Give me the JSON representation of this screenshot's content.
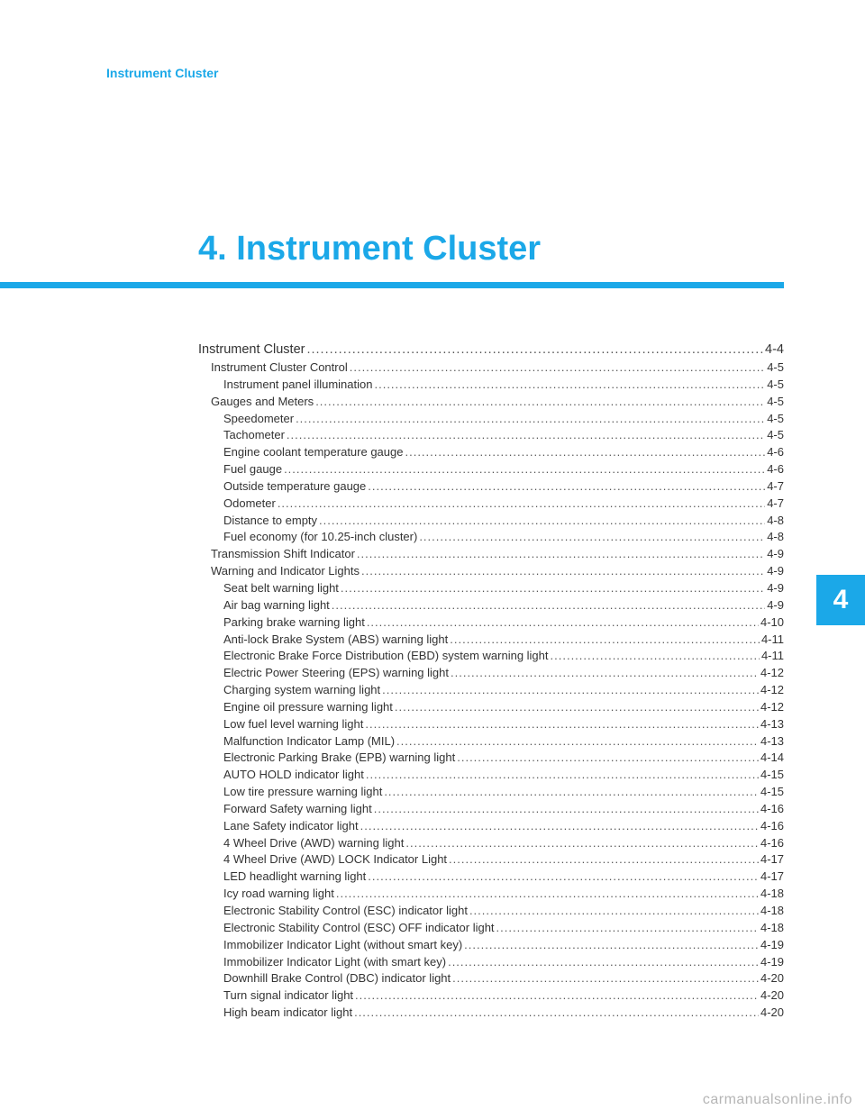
{
  "header": {
    "label": "Instrument Cluster"
  },
  "chapter": {
    "title": "4. Instrument Cluster",
    "tab_number": "4"
  },
  "colors": {
    "accent": "#1ba8e8",
    "text": "#333333",
    "background": "#ffffff"
  },
  "toc": [
    {
      "level": 0,
      "label": "Instrument Cluster",
      "page": "4-4"
    },
    {
      "level": 1,
      "label": "Instrument Cluster Control",
      "page": "4-5"
    },
    {
      "level": 2,
      "label": "Instrument panel illumination",
      "page": "4-5"
    },
    {
      "level": 1,
      "label": "Gauges and Meters",
      "page": "4-5"
    },
    {
      "level": 2,
      "label": "Speedometer",
      "page": "4-5"
    },
    {
      "level": 2,
      "label": "Tachometer",
      "page": "4-5"
    },
    {
      "level": 2,
      "label": "Engine coolant temperature gauge",
      "page": "4-6"
    },
    {
      "level": 2,
      "label": "Fuel gauge",
      "page": "4-6"
    },
    {
      "level": 2,
      "label": "Outside temperature gauge",
      "page": "4-7"
    },
    {
      "level": 2,
      "label": "Odometer",
      "page": "4-7"
    },
    {
      "level": 2,
      "label": "Distance to empty",
      "page": "4-8"
    },
    {
      "level": 2,
      "label": "Fuel economy (for 10.25-inch cluster) ",
      "page": "4-8"
    },
    {
      "level": 1,
      "label": "Transmission Shift Indicator",
      "page": "4-9"
    },
    {
      "level": 1,
      "label": "Warning and Indicator Lights",
      "page": "4-9"
    },
    {
      "level": 2,
      "label": "Seat belt warning light",
      "page": "4-9"
    },
    {
      "level": 2,
      "label": "Air bag warning light",
      "page": "4-9"
    },
    {
      "level": 2,
      "label": "Parking brake warning light",
      "page": "4-10"
    },
    {
      "level": 2,
      "label": "Anti-lock Brake System (ABS) warning light",
      "page": "4-11"
    },
    {
      "level": 2,
      "label": "Electronic Brake Force Distribution (EBD) system warning light",
      "page": "4-11"
    },
    {
      "level": 2,
      "label": "Electric Power Steering (EPS) warning light",
      "page": "4-12"
    },
    {
      "level": 2,
      "label": "Charging system warning light",
      "page": "4-12"
    },
    {
      "level": 2,
      "label": "Engine oil pressure warning light",
      "page": "4-12"
    },
    {
      "level": 2,
      "label": "Low fuel level warning light",
      "page": "4-13"
    },
    {
      "level": 2,
      "label": "Malfunction Indicator Lamp (MIL)",
      "page": "4-13"
    },
    {
      "level": 2,
      "label": "Electronic Parking Brake (EPB) warning light ",
      "page": "4-14"
    },
    {
      "level": 2,
      "label": "AUTO HOLD indicator light",
      "page": "4-15"
    },
    {
      "level": 2,
      "label": "Low tire pressure warning light",
      "page": "4-15"
    },
    {
      "level": 2,
      "label": "Forward Safety warning light ",
      "page": "4-16"
    },
    {
      "level": 2,
      "label": "Lane Safety indicator light ",
      "page": "4-16"
    },
    {
      "level": 2,
      "label": "4 Wheel Drive (AWD) warning light",
      "page": "4-16"
    },
    {
      "level": 2,
      "label": "4 Wheel Drive (AWD) LOCK Indicator Light",
      "page": "4-17"
    },
    {
      "level": 2,
      "label": "LED headlight warning light",
      "page": "4-17"
    },
    {
      "level": 2,
      "label": "Icy road warning light ",
      "page": "4-18"
    },
    {
      "level": 2,
      "label": "Electronic Stability Control (ESC) indicator light",
      "page": "4-18"
    },
    {
      "level": 2,
      "label": "Electronic Stability Control (ESC) OFF indicator light",
      "page": "4-18"
    },
    {
      "level": 2,
      "label": "Immobilizer Indicator Light (without smart key) ",
      "page": "4-19"
    },
    {
      "level": 2,
      "label": "Immobilizer Indicator Light (with smart key) ",
      "page": "4-19"
    },
    {
      "level": 2,
      "label": "Downhill Brake Control (DBC) indicator light",
      "page": "4-20"
    },
    {
      "level": 2,
      "label": "Turn signal indicator light",
      "page": "4-20"
    },
    {
      "level": 2,
      "label": "High beam indicator light",
      "page": "4-20"
    }
  ],
  "watermark": "carmanualsonline.info",
  "dots_fill": ".................................................................................................................................................................................."
}
